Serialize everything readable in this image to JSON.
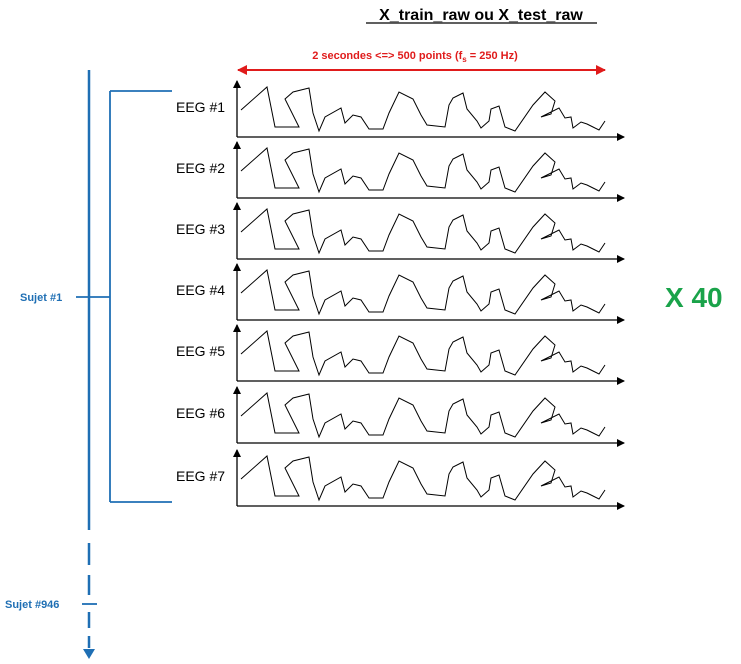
{
  "title": "X_train_raw ou X_test_raw",
  "duration": {
    "prefix": "2 secondes <=> 500 points  (f",
    "sub": "s",
    "suffix": " = 250 Hz)"
  },
  "channels": [
    "EEG #1",
    "EEG #2",
    "EEG #3",
    "EEG #4",
    "EEG #5",
    "EEG #6",
    "EEG #7"
  ],
  "subject_first": "Sujet #1",
  "subject_last": "Sujet #946",
  "multiplier": "X 40",
  "colors": {
    "subject_blue": "#1f6fb4",
    "duration_red": "#e01b1b",
    "multiplier_green": "#1aa34a",
    "axis": "#000000"
  }
}
